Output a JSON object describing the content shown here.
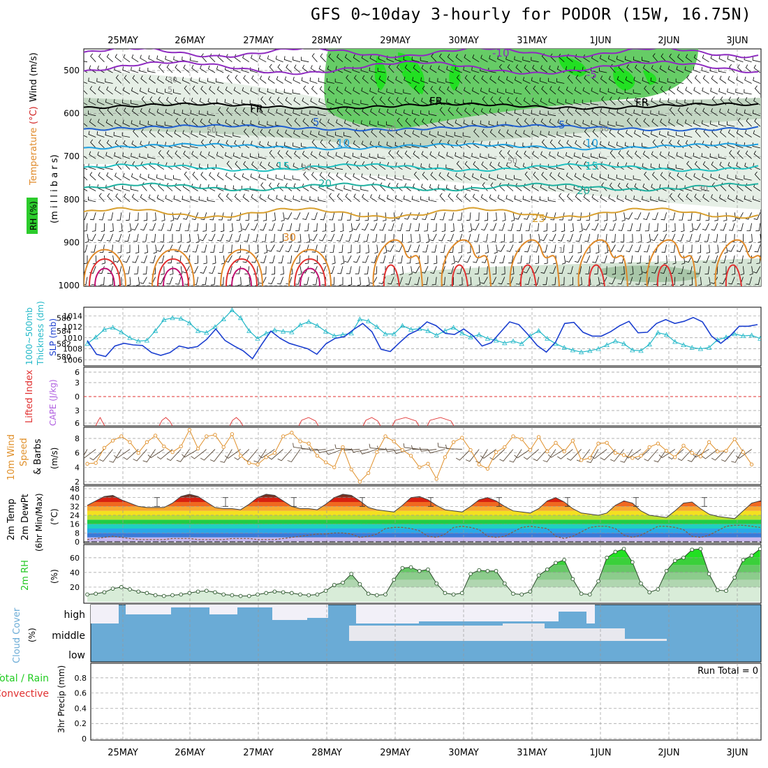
{
  "title": "GFS 0~10day 3-hourly for PODOR (15W, 16.75N)",
  "dates": [
    "25MAY",
    "26MAY",
    "27MAY",
    "28MAY",
    "29MAY",
    "30MAY",
    "31MAY",
    "1JUN",
    "2JUN",
    "3JUN"
  ],
  "colors": {
    "rh_green": "#2ccc2c",
    "temp_orange": "#e08a2a",
    "lifted_red": "#e03030",
    "cape_purple": "#b060e0",
    "thick_cyan": "#22b8c8",
    "slp_blue": "#1b3fd0",
    "wind_orange": "#e0902a",
    "cloud_blue": "#6aabd6",
    "rh2m_green": "#23c823",
    "precip_green": "#22cc22",
    "precip_red": "#e03030",
    "temp2m": "#444444",
    "rh2m": "#444444"
  },
  "panels": {
    "upper": {
      "ylabel_rh": "RH (%)",
      "ylabel_temp": "Temperature",
      "ylabel_temp_unit": "(°C)",
      "ylabel_wind": "Wind (m/s)",
      "ylabel_mb": "(m i l l i b a r s)",
      "yticks": [
        500,
        600,
        700,
        800,
        900,
        1000
      ],
      "iso_labels": [
        "-10",
        "-5",
        "FR",
        "FR",
        "FR",
        "5",
        "5",
        "10",
        "10",
        "15",
        "15",
        "20",
        "20",
        "25",
        "30",
        "30",
        "30",
        "50",
        "50",
        "50",
        "30",
        "30",
        "5",
        "1"
      ]
    },
    "thickness": {
      "ylabel_left": "1000~500mb",
      "ylabel_left2": "Thickness (dm)",
      "ylabel_right": "SLP (mb)",
      "yticks_left": [
        580,
        582,
        584,
        586
      ],
      "yticks_right": [
        1006,
        1008,
        1010,
        1012,
        1014
      ]
    },
    "lifted": {
      "ylabel_a": "Lifted Index",
      "ylabel_b": "CAPE (J/kg)",
      "yticks": [
        "6",
        "3",
        "0",
        "3",
        "6"
      ]
    },
    "wind10m": {
      "ylabel_a": "10m Wind",
      "ylabel_b": "Speed",
      "ylabel_c": "& Barbs",
      "ylabel_unit": "(m/s)",
      "yticks": [
        2,
        4,
        6,
        8
      ]
    },
    "temp2m": {
      "ylabel_a": "2m Temp",
      "ylabel_b": "2m DewPt",
      "ylabel_c": "(6hr Min/Max)",
      "ylabel_unit": "(°C)",
      "yticks": [
        0,
        8,
        16,
        24,
        32,
        40,
        48
      ]
    },
    "rh2m": {
      "ylabel": "2m RH",
      "ylabel_unit": "(%)",
      "yticks": [
        20,
        40,
        60
      ]
    },
    "cloud": {
      "ylabel": "Cloud Cover",
      "ylabel_unit": "(%)",
      "levels": [
        "high",
        "middle",
        "low"
      ]
    },
    "precip": {
      "ylabel_a": "Total / Rain",
      "ylabel_b": "Convective",
      "ylabel_c": "3hr Precip (mm)",
      "yticks": [
        "0",
        "0.2",
        "0.4",
        "0.6",
        "0.8"
      ],
      "run_total": "Run Total = 0"
    }
  },
  "chart_data": [
    {
      "type": "line",
      "name": "1000-500mb thickness (dm)",
      "x_start": "24MAY 12Z",
      "x_step_hours": 3,
      "values": [
        582.0,
        583.0,
        584.2,
        584.5,
        583.8,
        582.9,
        582.4,
        582.5,
        584.0,
        585.7,
        586.0,
        585.9,
        585.2,
        584.0,
        583.7,
        584.6,
        585.8,
        587.2,
        586.0,
        584.0,
        582.8,
        583.6,
        584.1,
        583.9,
        583.8,
        584.9,
        585.4,
        584.8,
        583.9,
        583.2,
        583.4,
        583.6,
        585.8,
        585.5,
        584.6,
        583.5,
        583.5,
        584.8,
        584.2,
        584.3,
        584.0,
        583.3,
        584.0,
        584.5,
        583.6,
        583.0,
        583.4,
        582.8,
        582.5,
        582.1,
        582.4,
        582.0,
        583.2,
        584.0,
        582.8,
        582.0,
        581.4,
        581.0,
        580.7,
        580.9,
        581.2,
        581.8,
        582.4,
        582.0,
        581.0,
        580.9,
        581.9,
        583.7,
        583.4,
        582.3,
        581.8,
        581.4,
        581.2,
        581.4,
        582.6,
        583.0,
        583.5,
        583.2,
        583.3,
        582.8
      ]
    },
    {
      "type": "line",
      "name": "SLP (mb)",
      "x_start": "24MAY 12Z",
      "x_step_hours": 3,
      "values": [
        1009.5,
        1007.0,
        1006.6,
        1008.5,
        1009.0,
        1008.7,
        1008.6,
        1007.3,
        1006.8,
        1007.3,
        1008.5,
        1008.1,
        1008.4,
        1009.7,
        1011.6,
        1009.5,
        1008.5,
        1007.6,
        1006.2,
        1008.8,
        1011.2,
        1009.9,
        1009.0,
        1008.5,
        1008.0,
        1007.0,
        1008.9,
        1009.9,
        1010.2,
        1011.5,
        1012.6,
        1011.1,
        1007.9,
        1007.5,
        1009.1,
        1010.6,
        1011.4,
        1012.9,
        1012.2,
        1010.8,
        1010.6,
        1011.6,
        1010.4,
        1008.5,
        1009.1,
        1011.0,
        1012.9,
        1012.4,
        1010.6,
        1008.6,
        1007.4,
        1009.2,
        1012.6,
        1012.8,
        1011.0,
        1010.3,
        1010.3,
        1011.1,
        1012.2,
        1013.0,
        1010.9,
        1011.0,
        1012.6,
        1013.3,
        1012.6,
        1013.0,
        1013.7,
        1012.9,
        1010.3,
        1009.0,
        1010.3,
        1012.1,
        1012.1,
        1012.4
      ]
    },
    {
      "type": "line",
      "name": "10m wind speed (m/s)",
      "x_start": "24MAY 12Z",
      "x_step_hours": 3,
      "values": [
        4.5,
        4.6,
        6.7,
        7.7,
        8.3,
        7.5,
        6.0,
        7.5,
        8.4,
        6.9,
        6.1,
        6.9,
        9.2,
        6.6,
        8.3,
        8.5,
        6.8,
        8.6,
        5.6,
        4.6,
        4.4,
        5.4,
        6.0,
        8.3,
        8.8,
        7.6,
        7.3,
        5.6,
        4.7,
        4.0,
        6.8,
        3.7,
        2.0,
        3.2,
        6.1,
        8.3,
        7.6,
        6.4,
        5.6,
        4.0,
        4.5,
        2.4,
        5.4,
        7.5,
        8.1,
        6.4,
        4.4,
        3.8,
        6.1,
        6.8,
        8.3,
        7.9,
        6.4,
        8.2,
        6.2,
        7.4,
        6.2,
        7.7,
        5.0,
        5.3,
        7.3,
        7.4,
        6.0,
        5.7,
        5.3,
        5.6,
        6.8,
        7.3,
        6.3,
        5.4,
        7.0,
        6.0,
        5.5,
        7.5,
        6.2,
        6.3,
        7.9,
        6.1,
        4.4
      ]
    },
    {
      "type": "area",
      "name": "2m temperature (°C)",
      "x_start": "24MAY 12Z",
      "x_step_hours": 3,
      "values": [
        33,
        37,
        41,
        42,
        38,
        35,
        32,
        31,
        31,
        31,
        35,
        41,
        43,
        41,
        36,
        31,
        30,
        30,
        29,
        34,
        40,
        43,
        42,
        37,
        32,
        30,
        30,
        29,
        34,
        40,
        43,
        42,
        37,
        31,
        29,
        28,
        27,
        33,
        40,
        41,
        38,
        33,
        29,
        28,
        27,
        32,
        38,
        40,
        37,
        32,
        28,
        27,
        26,
        30,
        37,
        40,
        36,
        30,
        26,
        25,
        24,
        26,
        33,
        37,
        35,
        28,
        24,
        23,
        22,
        28,
        35,
        36,
        30,
        25,
        23,
        22,
        21,
        28,
        35,
        37,
        32,
        26,
        24,
        22,
        21,
        21
      ]
    },
    {
      "type": "line",
      "name": "2m dew point (°C)",
      "x_start": "24MAY 12Z",
      "x_step_hours": 3,
      "values": [
        2,
        3,
        4,
        5,
        4,
        3,
        2,
        2,
        2,
        2,
        3,
        3,
        3,
        2,
        2,
        2,
        2,
        3,
        3,
        3,
        2,
        2,
        2,
        3,
        4,
        5,
        6,
        7,
        7,
        8,
        8,
        7,
        4,
        5,
        7,
        12,
        13,
        13,
        12,
        10,
        5,
        4,
        7,
        13,
        14,
        13,
        11,
        5,
        4,
        5,
        9,
        13,
        14,
        13,
        12,
        5,
        3,
        5,
        9,
        13,
        14,
        14,
        12,
        6,
        4,
        6,
        10,
        14,
        14,
        13,
        11,
        5,
        4,
        6,
        10,
        14,
        15,
        15,
        14,
        13
      ]
    },
    {
      "type": "area",
      "name": "2m RH (%)",
      "x_start": "24MAY 12Z",
      "x_step_hours": 3,
      "values": [
        10,
        11,
        13,
        18,
        20,
        17,
        14,
        12,
        9,
        8,
        9,
        10,
        12,
        14,
        15,
        13,
        10,
        9,
        8,
        8,
        10,
        12,
        14,
        13,
        12,
        10,
        9,
        10,
        15,
        23,
        26,
        38,
        24,
        11,
        9,
        10,
        30,
        46,
        47,
        42,
        44,
        25,
        12,
        10,
        12,
        38,
        43,
        42,
        42,
        25,
        11,
        10,
        14,
        36,
        44,
        53,
        57,
        31,
        11,
        10,
        28,
        60,
        68,
        72,
        54,
        25,
        13,
        17,
        42,
        56,
        60,
        71,
        72,
        38,
        16,
        15,
        33,
        57,
        63,
        72
      ]
    },
    {
      "type": "bar",
      "name": "3hr Precip (mm)",
      "categories": [
        "25MAY",
        "26MAY",
        "27MAY",
        "28MAY",
        "29MAY",
        "30MAY",
        "31MAY",
        "1JUN",
        "2JUN",
        "3JUN"
      ],
      "values": [
        0,
        0,
        0,
        0,
        0,
        0,
        0,
        0,
        0,
        0
      ],
      "ylim": [
        0,
        1
      ]
    }
  ]
}
